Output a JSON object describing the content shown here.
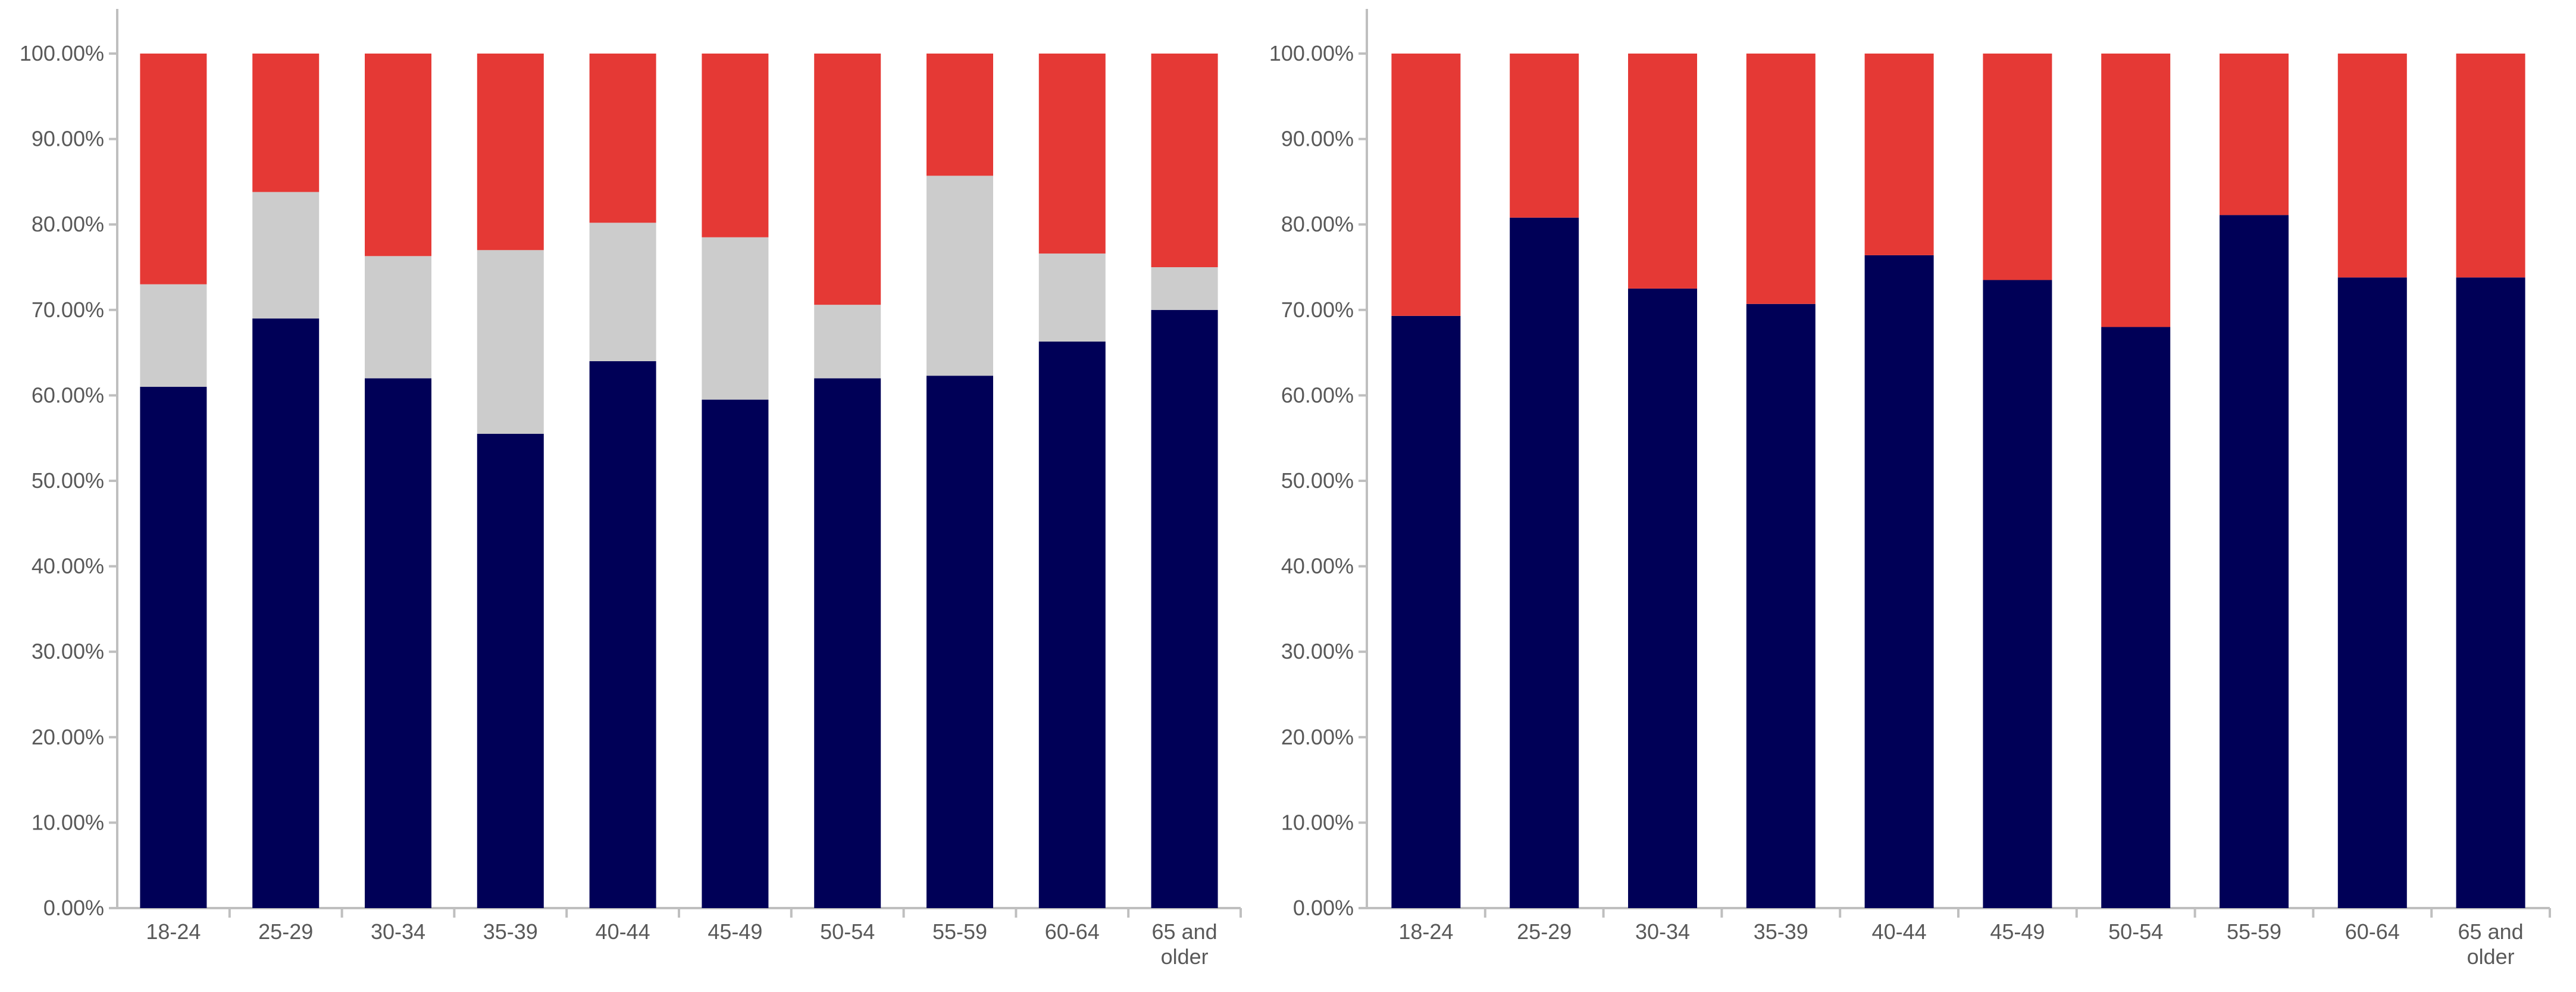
{
  "colors": {
    "series_a": "#000057",
    "series_b": "#cccccc",
    "series_c": "#e53935"
  },
  "chart_data": [
    {
      "type": "bar",
      "stacked": true,
      "percent": true,
      "categories": [
        "18-24",
        "25-29",
        "30-34",
        "35-39",
        "40-44",
        "45-49",
        "50-54",
        "55-59",
        "60-64",
        "65 and older"
      ],
      "series": [
        {
          "color": "#000057",
          "values": [
            61.0,
            69.0,
            62.0,
            55.5,
            64.0,
            59.5,
            62.0,
            62.3,
            66.3,
            70.0
          ]
        },
        {
          "color": "#cccccc",
          "values": [
            12.0,
            14.8,
            14.3,
            21.5,
            16.2,
            19.0,
            8.6,
            23.4,
            10.3,
            5.0
          ]
        },
        {
          "color": "#e53935",
          "values": [
            27.0,
            16.2,
            23.7,
            23.0,
            19.8,
            21.5,
            29.4,
            14.3,
            23.4,
            25.0
          ]
        }
      ],
      "ylim": [
        0,
        100
      ],
      "yticks": [
        "0.00%",
        "10.00%",
        "20.00%",
        "30.00%",
        "40.00%",
        "50.00%",
        "60.00%",
        "70.00%",
        "80.00%",
        "90.00%",
        "100.00%"
      ],
      "grid": false,
      "legend": "none"
    },
    {
      "type": "bar",
      "stacked": true,
      "percent": true,
      "categories": [
        "18-24",
        "25-29",
        "30-34",
        "35-39",
        "40-44",
        "45-49",
        "50-54",
        "55-59",
        "60-64",
        "65 and older"
      ],
      "series": [
        {
          "color": "#000057",
          "values": [
            69.3,
            80.8,
            72.5,
            70.7,
            76.4,
            73.5,
            68.0,
            81.1,
            73.8,
            73.8
          ]
        },
        {
          "color": "#e53935",
          "values": [
            30.7,
            19.2,
            27.5,
            29.3,
            23.6,
            26.5,
            32.0,
            18.9,
            26.2,
            26.2
          ]
        }
      ],
      "ylim": [
        0,
        100
      ],
      "yticks": [
        "0.00%",
        "10.00%",
        "20.00%",
        "30.00%",
        "40.00%",
        "50.00%",
        "60.00%",
        "70.00%",
        "80.00%",
        "90.00%",
        "100.00%"
      ],
      "grid": false,
      "legend": "none"
    }
  ]
}
